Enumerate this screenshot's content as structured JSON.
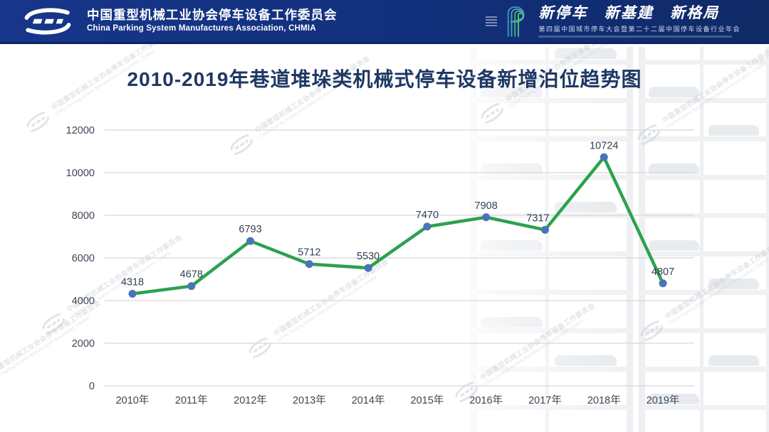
{
  "header": {
    "org_name_zh": "中国重型机械工业协会停车设备工作委员会",
    "org_name_en": "China Parking System Manufactures Association, CHMIA",
    "slogan": "新停车 新基建 新格局",
    "event_line": "第四届中国城市停车大会暨第二十二届中国停车设备行业年会"
  },
  "page_title": "2010-2019年巷道堆垛类机械式停车设备新增泊位趋势图",
  "watermark": {
    "line1": "中国重型机械工业协会停车设备工作委员会",
    "line2": "China Parking System Manufactures Association, CHMIA"
  },
  "colors": {
    "header_blue": "#12307C",
    "title_navy": "#1F3864",
    "line_green": "#2CA24E",
    "marker_blue": "#4A73B9",
    "grid_gray": "#D8D8D8",
    "axis_text": "#3D4756",
    "data_label_text": "#344055"
  },
  "chart_data": {
    "type": "line",
    "title": "2010-2019年巷道堆垛类机械式停车设备新增泊位趋势图",
    "categories": [
      "2010年",
      "2011年",
      "2012年",
      "2013年",
      "2014年",
      "2015年",
      "2016年",
      "2017年",
      "2018年",
      "2019年"
    ],
    "values": [
      4318,
      4678,
      6793,
      5712,
      5530,
      7470,
      7908,
      7317,
      10724,
      4807
    ],
    "xlabel": "",
    "ylabel": "",
    "ylim": [
      0,
      12000
    ],
    "ytick_step": 2000,
    "grid": true,
    "legend": "none",
    "data_labels": true,
    "line_color": "#2CA24E",
    "marker_color": "#4A73B9"
  }
}
